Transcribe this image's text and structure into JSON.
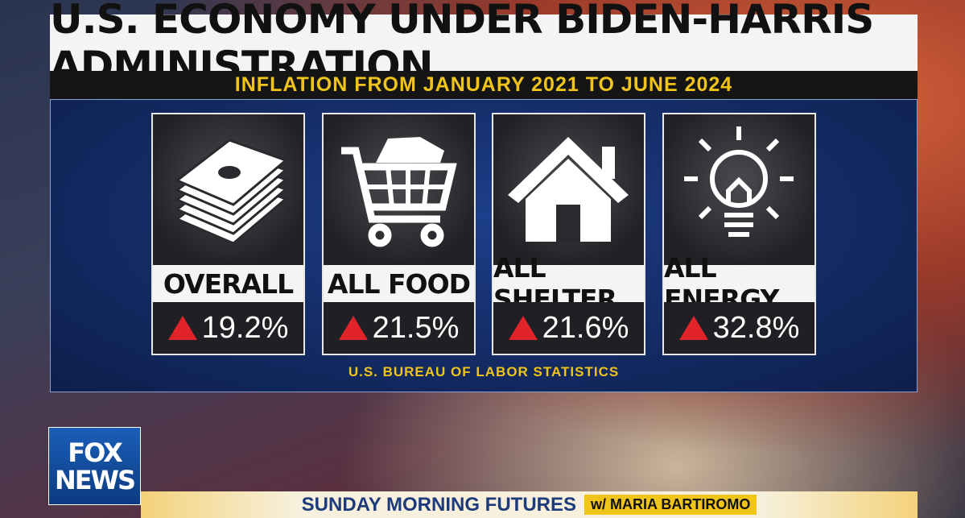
{
  "header": {
    "title": "U.S. ECONOMY UNDER BIDEN-HARRIS ADMINISTRATION",
    "subtitle": "INFLATION FROM JANUARY 2021 TO JUNE 2024"
  },
  "cards": [
    {
      "label": "OVERALL",
      "value": "19.2%"
    },
    {
      "label": "ALL FOOD",
      "value": "21.5%"
    },
    {
      "label": "ALL SHELTER",
      "value": "21.6%"
    },
    {
      "label": "ALL ENERGY",
      "value": "32.8%"
    }
  ],
  "source": "U.S. BUREAU OF LABOR STATISTICS",
  "logo": [
    "FOX",
    "NEWS"
  ],
  "ticker": {
    "show": "SUNDAY MORNING FUTURES",
    "host": "w/ MARIA BARTIROMO"
  }
}
